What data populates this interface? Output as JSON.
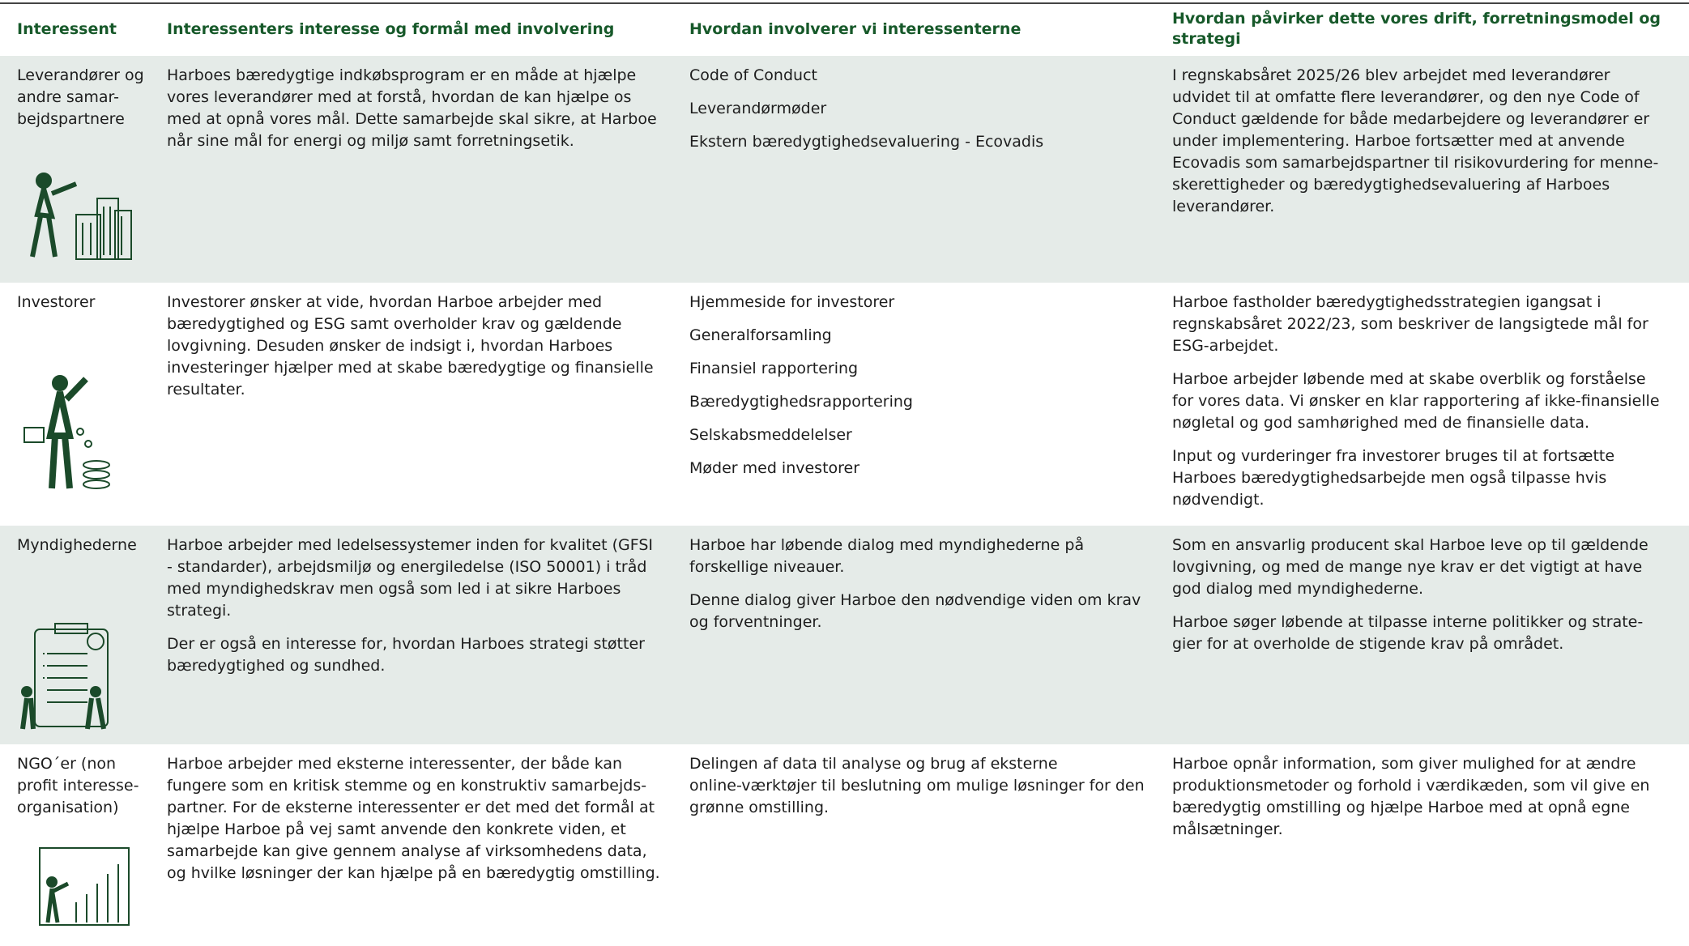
{
  "table": {
    "headers": [
      [
        "Interessent"
      ],
      [
        "Interessenters interesse og formål med involvering"
      ],
      [
        "Hvordan involverer vi interessenterne"
      ],
      [
        "Hvordan påvirker dette vores drift, forretningsmodel og",
        "strategi"
      ]
    ],
    "rows": [
      [
        [
          [
            "Leverandører og",
            "andre samar-",
            "bejdspartnere"
          ]
        ],
        [
          [
            "Harboes bæredygtige indkøbsprogram er en måde at hjælpe",
            "vores leverandører med at forstå, hvordan de kan hjælpe os",
            "med at opnå vores mål. Dette samarbejde skal sikre, at Harboe",
            "når sine mål for energi og miljø samt forretningsetik."
          ]
        ],
        [
          [
            "Code of Conduct"
          ],
          [
            "Leverandørmøder"
          ],
          [
            "Ekstern bæredygtighedsevaluering - Ecovadis"
          ]
        ],
        [
          [
            "I regnskabsåret 2025/26 blev arbejdet med leverandører",
            "udvidet til at omfatte flere leverandører, og den nye Code of",
            "Conduct gældende for både medarbejdere og leverandører er",
            "under implementering. Harboe fortsætter med at anvende",
            "Ecovadis som samarbejdspartner til risikovurdering for menne-",
            "skerettigheder og bæredygtighedsevaluering af Harboes",
            "leverandører."
          ]
        ]
      ],
      [
        [
          [
            "Investorer"
          ]
        ],
        [
          [
            "Investorer ønsker at vide, hvordan Harboe arbejder med",
            "bæredygtighed og ESG samt overholder krav og gældende",
            "lovgivning. Desuden ønsker de indsigt i, hvordan Harboes",
            "investeringer hjælper med at skabe bæredygtige og finansielle",
            "resultater."
          ]
        ],
        [
          [
            "Hjemmeside for investorer"
          ],
          [
            "Generalforsamling"
          ],
          [
            "Finansiel rapportering"
          ],
          [
            "Bæredygtighedsrapportering"
          ],
          [
            "Selskabsmeddelelser"
          ],
          [
            "Møder med investorer"
          ]
        ],
        [
          [
            "Harboe fastholder bæredygtighedsstrategien igangsat i",
            "regnskabsåret 2022/23, som beskriver de langsigtede mål for",
            "ESG-arbejdet."
          ],
          [
            "Harboe arbejder løbende med at skabe overblik og forståelse",
            "for vores data. Vi ønsker en klar rapportering af ikke-finansielle",
            "nøgletal og god samhørighed med de finansielle data."
          ],
          [
            "Input og vurderinger fra investorer bruges til at fortsætte",
            "Harboes bæredygtighedsarbejde men også tilpasse hvis",
            "nødvendigt."
          ]
        ]
      ],
      [
        [
          [
            "Myndighederne"
          ]
        ],
        [
          [
            "Harboe arbejder med ledelsessystemer inden for kvalitet (GFSI",
            "- standarder), arbejdsmiljø og energiledelse (ISO 50001) i tråd",
            "med myndighedskrav men også som led i at sikre Harboes",
            "strategi."
          ],
          [
            "Der er også en interesse for, hvordan Harboes strategi støtter",
            "bæredygtighed og sundhed."
          ]
        ],
        [
          [
            "Harboe har løbende dialog med myndighederne på",
            "forskellige niveauer."
          ],
          [
            "Denne dialog giver Harboe den nødvendige viden om krav",
            "og forventninger."
          ]
        ],
        [
          [
            "Som en ansvarlig producent skal Harboe leve op til gældende",
            "lovgivning, og med de mange nye krav er det vigtigt at have",
            "god dialog med myndighederne."
          ],
          [
            "Harboe søger løbende at tilpasse interne politikker og strate-",
            "gier for at overholde de stigende krav på området."
          ]
        ]
      ],
      [
        [
          [
            "NGO´er  (non",
            "profit interesse-",
            "organisation)"
          ]
        ],
        [
          [
            "Harboe arbejder med eksterne interessenter, der både kan",
            "fungere som en kritisk stemme og en konstruktiv samarbejds-",
            "partner. For de eksterne interessenter er det med det formål at",
            "hjælpe Harboe på vej samt anvende den konkrete viden, et",
            "samarbejde kan give gennem analyse af virksomhedens data,",
            "og hvilke løsninger der kan hjælpe på en bæredygtig omstilling."
          ]
        ],
        [
          [
            "Delingen af data til analyse og brug af eksterne",
            "online-værktøjer til beslutning om mulige løsninger for den",
            "grønne omstilling."
          ]
        ],
        [
          [
            "Harboe opnår information, som giver mulighed for at ændre",
            "produktionsmetoder og forhold i værdikæden, som vil give en",
            "bæredygtig omstilling og hjælpe Harboe med at opnå egne",
            "målsætninger."
          ]
        ]
      ]
    ]
  }
}
